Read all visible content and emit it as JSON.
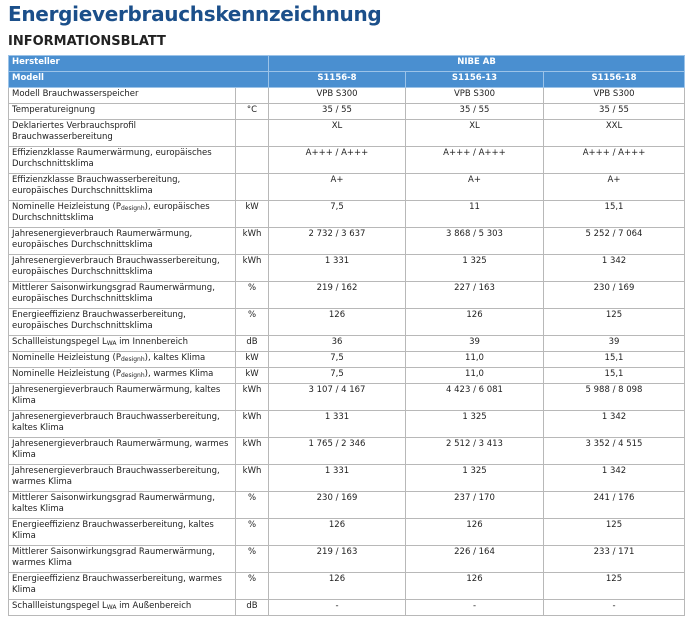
{
  "header": {
    "title": "Energieverbrauchskennzeichnung",
    "subtitle": "INFORMATIONSBLATT"
  },
  "table": {
    "manufacturer_label": "Hersteller",
    "manufacturer": "NIBE AB",
    "model_label": "Modell",
    "models": [
      "S1156-8",
      "S1156-13",
      "S1156-18"
    ],
    "rows": [
      {
        "label": "Modell Brauchwasserspeicher",
        "values": [
          "VPB S300",
          "VPB S300",
          "VPB S300"
        ]
      },
      {
        "label": "Temperatureignung",
        "unit": "°C",
        "values": [
          "35 / 55",
          "35 / 55",
          "35 / 55"
        ]
      },
      {
        "label": "Deklariertes Verbrauchsprofil Brauchwasserbereitung",
        "values": [
          "XL",
          "XL",
          "XXL"
        ]
      },
      {
        "label": "Effizienzklasse Raumerwärmung, europäisches Durchschnittsklima",
        "values": [
          "A+++ / A+++",
          "A+++ / A+++",
          "A+++ / A+++"
        ]
      },
      {
        "label": "Effizienzklasse Brauchwasserbereitung, europäisches Durchschnittsklima",
        "values": [
          "A+",
          "A+",
          "A+"
        ]
      },
      {
        "label": {
          "pre": "Nominelle Heizleistung (P",
          "sub": "designh",
          "post": "), europäisches Durchschnittsklima"
        },
        "unit": "kW",
        "values": [
          "7,5",
          "11",
          "15,1"
        ]
      },
      {
        "label": "Jahresenergieverbrauch Raumerwärmung, europäisches Durchschnittsklima",
        "unit": "kWh",
        "values": [
          "2 732 / 3 637",
          "3 868 / 5 303",
          "5 252 / 7 064"
        ]
      },
      {
        "label": "Jahresenergieverbrauch Brauchwasserbereitung, europäisches Durchschnittsklima",
        "unit": "kWh",
        "values": [
          "1 331",
          "1 325",
          "1 342"
        ]
      },
      {
        "label": "Mittlerer Saisonwirkungsgrad Raumerwärmung, europäisches Durchschnittsklima",
        "unit": "%",
        "values": [
          "219 / 162",
          "227 / 163",
          "230 / 169"
        ]
      },
      {
        "label": "Energieeffizienz Brauchwasserbereitung, europäisches Durchschnittsklima",
        "unit": "%",
        "values": [
          "126",
          "126",
          "125"
        ]
      },
      {
        "label": {
          "pre": "Schallleistungspegel L",
          "sub": "WA",
          "post": " im Innenbereich"
        },
        "unit": "dB",
        "values": [
          "36",
          "39",
          "39"
        ]
      },
      {
        "label": {
          "pre": "Nominelle Heizleistung (P",
          "sub": "designh",
          "post": "), kaltes Klima"
        },
        "unit": "kW",
        "values": [
          "7,5",
          "11,0",
          "15,1"
        ]
      },
      {
        "label": {
          "pre": "Nominelle Heizleistung (P",
          "sub": "designh",
          "post": "), warmes Klima"
        },
        "unit": "kW",
        "values": [
          "7,5",
          "11,0",
          "15,1"
        ]
      },
      {
        "label": "Jahresenergieverbrauch Raumerwärmung, kaltes Klima",
        "unit": "kWh",
        "values": [
          "3 107 / 4 167",
          "4 423 / 6 081",
          "5 988 / 8 098"
        ]
      },
      {
        "label": "Jahresenergieverbrauch Brauchwasserbereitung, kaltes Klima",
        "unit": "kWh",
        "values": [
          "1 331",
          "1 325",
          "1 342"
        ]
      },
      {
        "label": "Jahresenergieverbrauch Raumerwärmung, warmes Klima",
        "unit": "kWh",
        "values": [
          "1 765 / 2 346",
          "2 512 / 3 413",
          "3 352 / 4 515"
        ]
      },
      {
        "label": "Jahresenergieverbrauch Brauchwasserbereitung, warmes Klima",
        "unit": "kWh",
        "values": [
          "1 331",
          "1 325",
          "1 342"
        ]
      },
      {
        "label": "Mittlerer Saisonwirkungsgrad Raumerwärmung, kaltes Klima",
        "unit": "%",
        "values": [
          "230 / 169",
          "237 / 170",
          "241 / 176"
        ]
      },
      {
        "label": "Energieeffizienz Brauchwasserbereitung, kaltes Klima",
        "unit": "%",
        "values": [
          "126",
          "126",
          "125"
        ]
      },
      {
        "label": "Mittlerer Saisonwirkungsgrad Raumerwärmung, warmes Klima",
        "unit": "%",
        "values": [
          "219 / 163",
          "226 / 164",
          "233 / 171"
        ]
      },
      {
        "label": "Energieeffizienz Brauchwasserbereitung, warmes Klima",
        "unit": "%",
        "values": [
          "126",
          "126",
          "125"
        ]
      },
      {
        "label": {
          "pre": "Schallleistungspegel L",
          "sub": "WA",
          "post": " im Außenbereich"
        },
        "unit": "dB",
        "values": [
          "-",
          "-",
          "-"
        ]
      }
    ]
  }
}
